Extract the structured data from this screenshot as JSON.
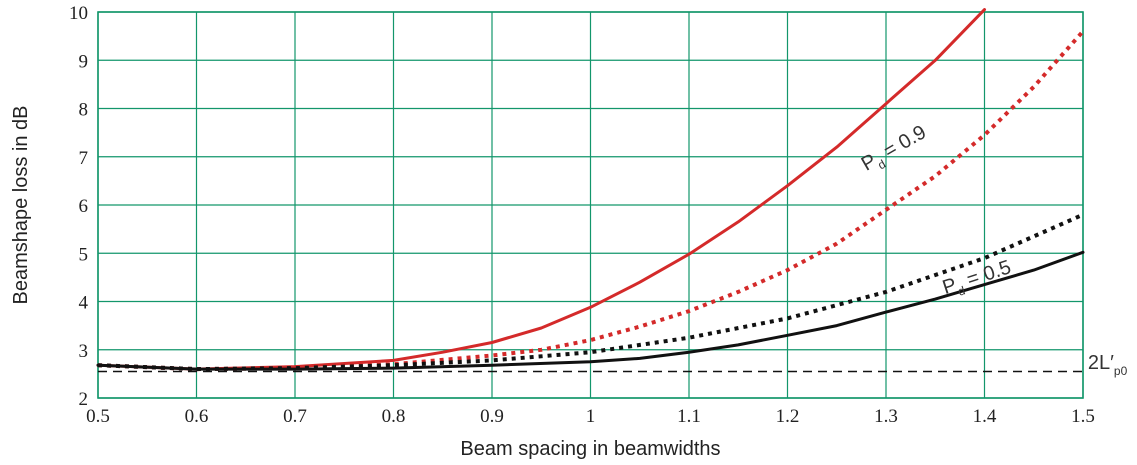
{
  "chart_data": {
    "type": "line",
    "title": "",
    "xlabel": "Beam spacing in beamwidths",
    "ylabel": "Beamshape loss in dB",
    "xlim": [
      0.5,
      1.5
    ],
    "ylim": [
      2,
      10
    ],
    "xticks": [
      0.5,
      0.6,
      0.7,
      0.8,
      0.9,
      1,
      1.1,
      1.2,
      1.3,
      1.4,
      1.5
    ],
    "yticks": [
      2,
      3,
      4,
      5,
      6,
      7,
      8,
      9,
      10
    ],
    "grid": true,
    "colors": {
      "grid": "#13966b",
      "red": "#d42a2a",
      "black": "#111111"
    },
    "series": [
      {
        "style": "solid",
        "color": "red",
        "x": [
          0.5,
          0.6,
          0.7,
          0.8,
          0.85,
          0.9,
          0.95,
          1.0,
          1.05,
          1.1,
          1.15,
          1.2,
          1.25,
          1.3,
          1.35,
          1.4
        ],
        "y": [
          2.68,
          2.6,
          2.65,
          2.78,
          2.95,
          3.15,
          3.45,
          3.88,
          4.4,
          4.98,
          5.65,
          6.4,
          7.2,
          8.1,
          9.0,
          10.05
        ]
      },
      {
        "style": "dotted",
        "color": "red",
        "x": [
          0.5,
          0.6,
          0.7,
          0.8,
          0.9,
          0.95,
          1.0,
          1.05,
          1.1,
          1.15,
          1.2,
          1.25,
          1.3,
          1.35,
          1.4,
          1.45,
          1.5
        ],
        "y": [
          2.68,
          2.6,
          2.62,
          2.7,
          2.88,
          3.0,
          3.2,
          3.48,
          3.8,
          4.2,
          4.65,
          5.2,
          5.9,
          6.6,
          7.45,
          8.45,
          9.6
        ]
      },
      {
        "style": "dotted",
        "color": "black",
        "x": [
          0.5,
          0.6,
          0.7,
          0.8,
          0.9,
          1.0,
          1.1,
          1.2,
          1.3,
          1.4,
          1.5
        ],
        "y": [
          2.68,
          2.6,
          2.62,
          2.68,
          2.78,
          2.95,
          3.25,
          3.65,
          4.2,
          4.9,
          5.8
        ]
      },
      {
        "style": "solid",
        "color": "black",
        "x": [
          0.5,
          0.6,
          0.7,
          0.8,
          0.9,
          1.0,
          1.05,
          1.1,
          1.15,
          1.2,
          1.25,
          1.3,
          1.35,
          1.4,
          1.45,
          1.5
        ],
        "y": [
          2.68,
          2.6,
          2.6,
          2.62,
          2.68,
          2.75,
          2.82,
          2.95,
          3.1,
          3.3,
          3.5,
          3.78,
          4.05,
          4.35,
          4.65,
          5.02
        ]
      },
      {
        "style": "dashed",
        "color": "black",
        "x": [
          0.5,
          1.5
        ],
        "y": [
          2.55,
          2.55
        ]
      }
    ],
    "annotations": [
      {
        "main": "P",
        "sub": "d",
        "rest": " = 0.9",
        "x": 1.28,
        "y": 6.7,
        "angle": -30,
        "anchor": "start"
      },
      {
        "main": "P",
        "sub": "d",
        "rest": " = 0.5",
        "x": 1.36,
        "y": 4.15,
        "angle": -18,
        "anchor": "start"
      },
      {
        "main": "2L′",
        "sub": "p0",
        "rest": "",
        "x": 1.505,
        "y": 2.6,
        "angle": 0,
        "anchor": "start"
      }
    ]
  }
}
